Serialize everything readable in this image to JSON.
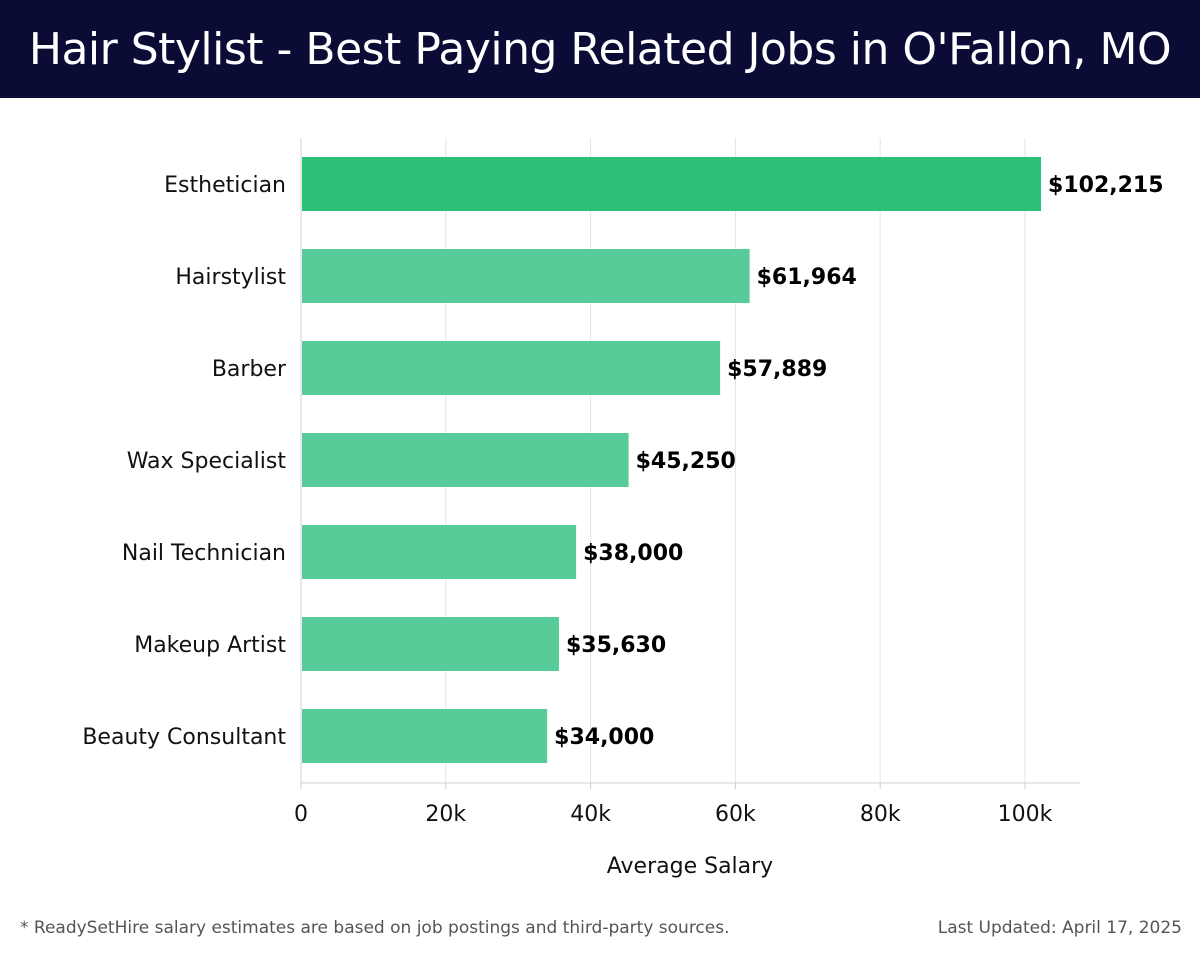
{
  "header": {
    "title": "Hair Stylist - Best Paying Related Jobs in O'Fallon, MO"
  },
  "colors": {
    "header_bg": "#0b0c36",
    "top_bar": "#2bbf78",
    "bar": "#58cc98"
  },
  "chart_data": {
    "type": "bar",
    "orientation": "horizontal",
    "title": "Hair Stylist - Best Paying Related Jobs in O'Fallon, MO",
    "categories": [
      "Esthetician",
      "Hairstylist",
      "Barber",
      "Wax Specialist",
      "Nail Technician",
      "Makeup Artist",
      "Beauty Consultant"
    ],
    "values": [
      102215,
      61964,
      57889,
      45250,
      38000,
      35630,
      34000
    ],
    "data_labels": [
      "$102,215",
      "$61,964",
      "$57,889",
      "$45,250",
      "$38,000",
      "$35,630",
      "$34,000"
    ],
    "xlabel": "Average Salary",
    "ylabel": "",
    "xticks": [
      0,
      20000,
      40000,
      60000,
      80000,
      100000
    ],
    "xtick_labels": [
      "0",
      "20k",
      "40k",
      "60k",
      "80k",
      "100k"
    ],
    "xlim": [
      0,
      107500
    ],
    "grid": true
  },
  "footer": {
    "note": "* ReadySetHire salary estimates are based on job postings and third-party sources.",
    "updated": "Last Updated: April 17, 2025"
  }
}
